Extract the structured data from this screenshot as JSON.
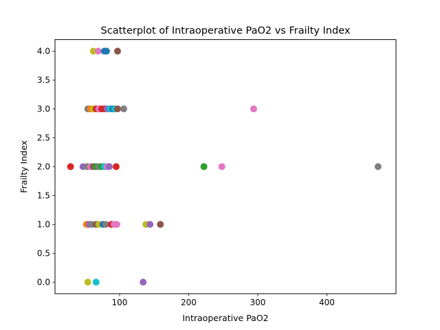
{
  "chart_data": {
    "type": "scatter",
    "title": "Scatterplot of Intraoperative PaO2 vs Frailty Index",
    "xlabel": "Intraoperative PaO2",
    "ylabel": "Frailty Index",
    "xlim": [
      6.5,
      500
    ],
    "ylim": [
      -0.2,
      4.2
    ],
    "xticks": [
      100,
      200,
      300,
      400
    ],
    "yticks": [
      0.0,
      0.5,
      1.0,
      1.5,
      2.0,
      2.5,
      3.0,
      3.5,
      4.0
    ],
    "ytick_labels": [
      "0.0",
      "0.5",
      "1.0",
      "1.5",
      "2.0",
      "2.5",
      "3.0",
      "3.5",
      "4.0"
    ],
    "grid": false,
    "legend": "none",
    "colors": {
      "blue": "#1f77b4",
      "orange": "#ff7f0e",
      "green": "#2ca02c",
      "red": "#d62728",
      "purple": "#9467bd",
      "brown": "#8c564b",
      "pink": "#e377c2",
      "gray": "#7f7f7f",
      "olive": "#bcbd22",
      "cyan": "#17becf"
    },
    "points": [
      {
        "x": 62,
        "y": 4,
        "color": "olive"
      },
      {
        "x": 69,
        "y": 4,
        "color": "pink"
      },
      {
        "x": 78,
        "y": 4,
        "color": "blue"
      },
      {
        "x": 81,
        "y": 4,
        "color": "blue"
      },
      {
        "x": 97,
        "y": 4,
        "color": "brown"
      },
      {
        "x": 54,
        "y": 3,
        "color": "gray"
      },
      {
        "x": 58,
        "y": 3,
        "color": "orange"
      },
      {
        "x": 62,
        "y": 3,
        "color": "olive"
      },
      {
        "x": 66,
        "y": 3,
        "color": "red"
      },
      {
        "x": 70,
        "y": 3,
        "color": "pink"
      },
      {
        "x": 74,
        "y": 3,
        "color": "red"
      },
      {
        "x": 78,
        "y": 3,
        "color": "red"
      },
      {
        "x": 82,
        "y": 3,
        "color": "purple"
      },
      {
        "x": 86,
        "y": 3,
        "color": "cyan"
      },
      {
        "x": 90,
        "y": 3,
        "color": "blue"
      },
      {
        "x": 93,
        "y": 3,
        "color": "cyan"
      },
      {
        "x": 97,
        "y": 3,
        "color": "brown"
      },
      {
        "x": 106,
        "y": 3,
        "color": "gray"
      },
      {
        "x": 294,
        "y": 3,
        "color": "pink"
      },
      {
        "x": 29,
        "y": 2,
        "color": "red"
      },
      {
        "x": 47,
        "y": 2,
        "color": "purple"
      },
      {
        "x": 53,
        "y": 2,
        "color": "gray"
      },
      {
        "x": 58,
        "y": 2,
        "color": "pink"
      },
      {
        "x": 62,
        "y": 2,
        "color": "brown"
      },
      {
        "x": 66,
        "y": 2,
        "color": "green"
      },
      {
        "x": 70,
        "y": 2,
        "color": "gray"
      },
      {
        "x": 74,
        "y": 2,
        "color": "green"
      },
      {
        "x": 78,
        "y": 2,
        "color": "cyan"
      },
      {
        "x": 82,
        "y": 2,
        "color": "pink"
      },
      {
        "x": 85,
        "y": 2,
        "color": "purple"
      },
      {
        "x": 95,
        "y": 2,
        "color": "red"
      },
      {
        "x": 222,
        "y": 2,
        "color": "green"
      },
      {
        "x": 248,
        "y": 2,
        "color": "pink"
      },
      {
        "x": 474,
        "y": 2,
        "color": "gray"
      },
      {
        "x": 52,
        "y": 1,
        "color": "orange"
      },
      {
        "x": 56,
        "y": 1,
        "color": "purple"
      },
      {
        "x": 60,
        "y": 1,
        "color": "gray"
      },
      {
        "x": 66,
        "y": 1,
        "color": "brown"
      },
      {
        "x": 70,
        "y": 1,
        "color": "olive"
      },
      {
        "x": 76,
        "y": 1,
        "color": "blue"
      },
      {
        "x": 80,
        "y": 1,
        "color": "gray"
      },
      {
        "x": 88,
        "y": 1,
        "color": "red"
      },
      {
        "x": 92,
        "y": 1,
        "color": "pink"
      },
      {
        "x": 96,
        "y": 1,
        "color": "pink"
      },
      {
        "x": 138,
        "y": 1,
        "color": "olive"
      },
      {
        "x": 144,
        "y": 1,
        "color": "purple"
      },
      {
        "x": 159,
        "y": 1,
        "color": "brown"
      },
      {
        "x": 54,
        "y": 0,
        "color": "olive"
      },
      {
        "x": 66,
        "y": 0,
        "color": "cyan"
      },
      {
        "x": 134,
        "y": 0,
        "color": "purple"
      }
    ]
  }
}
